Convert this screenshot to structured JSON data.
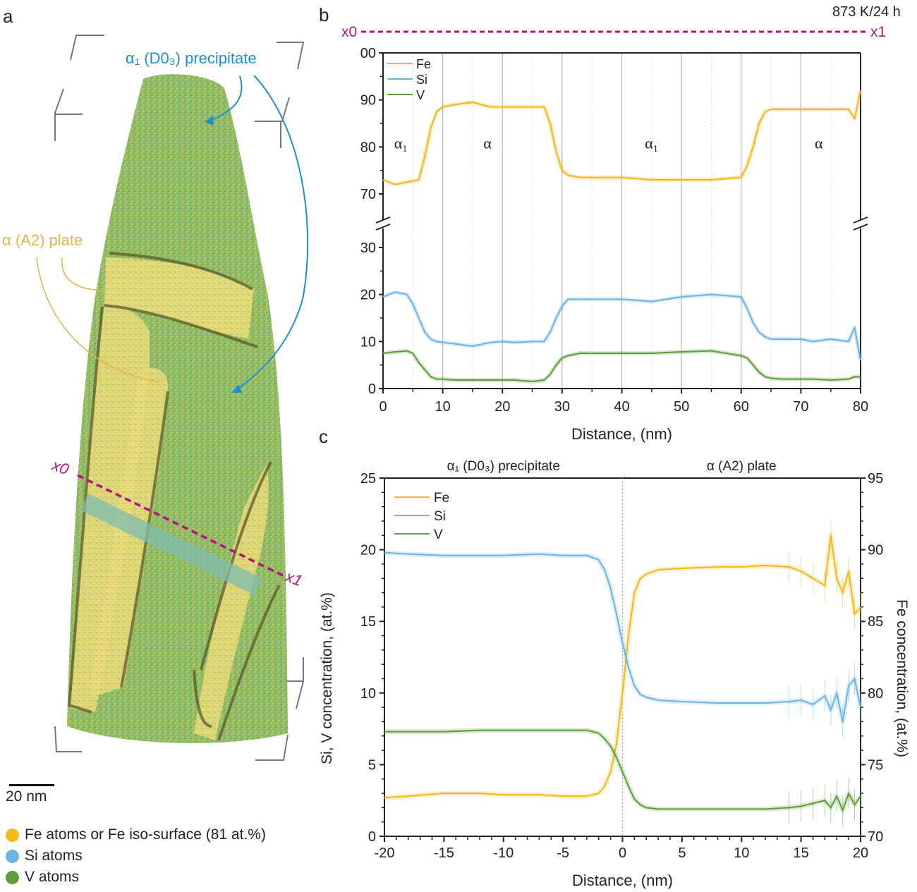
{
  "figure": {
    "panel_labels": {
      "a": "a",
      "b": "b",
      "c": "c"
    },
    "colors": {
      "Fe": "#f2b81c",
      "Si": "#6cb4e4",
      "V": "#5e9d3a",
      "line_marker": "#b0157a",
      "precipitate_label": "#1f8fd0",
      "plate_label": "#e8b443"
    }
  },
  "panel_a": {
    "precipitate_label": "α₁ (D0₃) precipitate",
    "plate_label": "α (A2) plate",
    "x0_label": "x0",
    "x1_label": "x1",
    "scale_bar_label": "20 nm",
    "legend": [
      {
        "label": "Fe atoms or Fe iso-surface (81 at.%)",
        "color": "#f2b81c"
      },
      {
        "label": "Si atoms",
        "color": "#6cb4e4"
      },
      {
        "label": "V atoms",
        "color": "#5e9d3a"
      }
    ]
  },
  "chart_data": [
    {
      "id": "b",
      "type": "line",
      "title": "873 K/24 h",
      "profile_start_label": "x0",
      "profile_end_label": "x1",
      "xlabel": "Distance, (nm)",
      "ylabel": "",
      "xlim": [
        0,
        80
      ],
      "xticks": [
        0,
        10,
        20,
        30,
        40,
        50,
        60,
        70,
        80
      ],
      "y_axis_break": true,
      "upper_ylim": [
        70,
        100
      ],
      "upper_yticks": [
        {
          "v": 100,
          "label": "00"
        },
        {
          "v": 90,
          "label": "90"
        },
        {
          "v": 80,
          "label": "80"
        },
        {
          "v": 70,
          "label": "70"
        }
      ],
      "lower_ylim": [
        0,
        30
      ],
      "lower_yticks": [
        0,
        10,
        20,
        30
      ],
      "grid": "vertical lines every 10 nm (solid) and 5 nm (dotted)",
      "legend_position": "top-left",
      "phase_annotations": [
        {
          "x": 3,
          "label": "α₁"
        },
        {
          "x": 17.5,
          "label": "α"
        },
        {
          "x": 45,
          "label": "α₁"
        },
        {
          "x": 73,
          "label": "α"
        }
      ],
      "series": [
        {
          "name": "Fe",
          "color": "#f2b81c",
          "panel": "upper",
          "x": [
            0,
            2,
            4,
            6,
            7,
            8,
            9,
            10,
            12,
            15,
            18,
            20,
            22,
            25,
            27,
            28,
            29,
            30,
            31,
            33,
            35,
            40,
            45,
            50,
            55,
            60,
            61,
            62,
            63,
            64,
            65,
            67,
            70,
            72,
            75,
            78,
            79,
            80
          ],
          "y": [
            73,
            72,
            72.5,
            73,
            78,
            84,
            87.5,
            88.5,
            89,
            89.5,
            88.5,
            88.5,
            88.5,
            88.5,
            88.5,
            85,
            79,
            75,
            74,
            73.5,
            73.5,
            73.5,
            73,
            73,
            73,
            73.5,
            76,
            80,
            85,
            87.5,
            88,
            88,
            88,
            88,
            88,
            88,
            86,
            92
          ]
        },
        {
          "name": "Si",
          "color": "#6cb4e4",
          "panel": "lower",
          "x": [
            0,
            2,
            4,
            5,
            6,
            7,
            8,
            9,
            10,
            12,
            15,
            18,
            20,
            22,
            25,
            27,
            28,
            29,
            30,
            31,
            33,
            35,
            40,
            45,
            50,
            55,
            60,
            61,
            62,
            63,
            64,
            65,
            67,
            70,
            72,
            75,
            78,
            79,
            80
          ],
          "y": [
            19.5,
            20.5,
            20,
            18,
            15,
            12,
            10.5,
            10,
            9.8,
            9.5,
            9,
            9.8,
            10,
            9.8,
            10,
            10,
            12,
            15,
            17.5,
            19,
            19,
            19,
            19,
            18.5,
            19.5,
            20,
            19.5,
            17,
            14,
            12,
            11,
            10.5,
            10.5,
            10.5,
            10,
            10.5,
            10,
            13,
            6
          ]
        },
        {
          "name": "V",
          "color": "#5e9d3a",
          "panel": "lower",
          "x": [
            0,
            2,
            4,
            5,
            6,
            7,
            8,
            9,
            10,
            12,
            15,
            18,
            20,
            22,
            25,
            27,
            28,
            29,
            30,
            31,
            33,
            35,
            40,
            45,
            50,
            55,
            60,
            61,
            62,
            63,
            64,
            65,
            67,
            70,
            72,
            75,
            78,
            79,
            80
          ],
          "y": [
            7.5,
            7.8,
            8,
            7.5,
            5.5,
            4,
            2.5,
            2,
            2,
            1.8,
            1.8,
            1.8,
            1.8,
            1.8,
            1.5,
            1.8,
            3,
            5,
            6.5,
            7,
            7.5,
            7.5,
            7.5,
            7.5,
            7.8,
            8,
            7,
            6.5,
            5,
            3.5,
            2.5,
            2.2,
            2,
            2,
            2,
            1.8,
            2,
            2.5,
            2.5
          ]
        }
      ]
    },
    {
      "id": "c",
      "type": "line",
      "title": "",
      "xlabel": "Distance, (nm)",
      "ylabel": "Si, V concentration, (at.%)",
      "y2label": "Fe concentration, (at.%)",
      "xlim": [
        -20,
        20
      ],
      "xticks": [
        -20,
        -15,
        -10,
        -5,
        0,
        5,
        10,
        15,
        20
      ],
      "ylim": [
        0,
        25
      ],
      "yticks": [
        0,
        5,
        10,
        15,
        20,
        25
      ],
      "y2lim": [
        70,
        95
      ],
      "y2ticks": [
        70,
        75,
        80,
        85,
        90,
        95
      ],
      "region_labels": [
        {
          "side": "left",
          "label": "α₁ (D0₃) precipitate"
        },
        {
          "side": "right",
          "label": "α (A2) plate"
        }
      ],
      "interface_x": 0,
      "legend_position": "top-left",
      "error_bars": true,
      "series": [
        {
          "name": "Fe",
          "color": "#f2b81c",
          "axis": "right",
          "x": [
            -20,
            -18,
            -15,
            -12,
            -10,
            -7,
            -5,
            -3,
            -2,
            -1.5,
            -1,
            -0.5,
            0,
            0.5,
            1,
            1.5,
            2,
            3,
            5,
            8,
            10,
            12,
            14,
            15,
            16,
            17,
            17.5,
            18,
            18.5,
            19,
            19.5,
            20
          ],
          "y": [
            72.7,
            72.8,
            73,
            73,
            72.9,
            72.9,
            72.8,
            72.8,
            73,
            73.5,
            74.5,
            76.5,
            80,
            84,
            87,
            88,
            88.3,
            88.6,
            88.7,
            88.8,
            88.8,
            88.9,
            88.8,
            88.5,
            88,
            87.5,
            91,
            88,
            87,
            88.5,
            85.5,
            86
          ]
        },
        {
          "name": "Si",
          "color": "#6cb4e4",
          "axis": "left",
          "x": [
            -20,
            -18,
            -15,
            -12,
            -10,
            -7,
            -5,
            -3,
            -2,
            -1.5,
            -1,
            -0.5,
            0,
            0.5,
            1,
            1.5,
            2,
            3,
            5,
            8,
            10,
            12,
            14,
            15,
            16,
            17,
            17.5,
            18,
            18.5,
            19,
            19.5,
            20
          ],
          "y": [
            19.8,
            19.7,
            19.6,
            19.6,
            19.6,
            19.7,
            19.6,
            19.6,
            19.3,
            18.6,
            17.3,
            15.5,
            13.5,
            11.8,
            10.5,
            9.9,
            9.7,
            9.5,
            9.4,
            9.3,
            9.3,
            9.3,
            9.4,
            9.5,
            9.2,
            9.8,
            8.8,
            10,
            8,
            10.5,
            11,
            9
          ]
        },
        {
          "name": "V",
          "color": "#5e9d3a",
          "axis": "left",
          "x": [
            -20,
            -18,
            -15,
            -12,
            -10,
            -7,
            -5,
            -3,
            -2,
            -1.5,
            -1,
            -0.5,
            0,
            0.5,
            1,
            1.5,
            2,
            3,
            5,
            8,
            10,
            12,
            14,
            15,
            16,
            17,
            17.5,
            18,
            18.5,
            19,
            19.5,
            20
          ],
          "y": [
            7.3,
            7.3,
            7.3,
            7.4,
            7.4,
            7.4,
            7.4,
            7.4,
            7.2,
            6.8,
            6.3,
            5.5,
            4.5,
            3.5,
            2.6,
            2.2,
            2.0,
            1.9,
            1.9,
            1.9,
            1.9,
            1.9,
            2.0,
            2.1,
            2.3,
            2.5,
            2.0,
            2.8,
            1.8,
            3.0,
            2.2,
            2.8
          ]
        }
      ]
    }
  ]
}
